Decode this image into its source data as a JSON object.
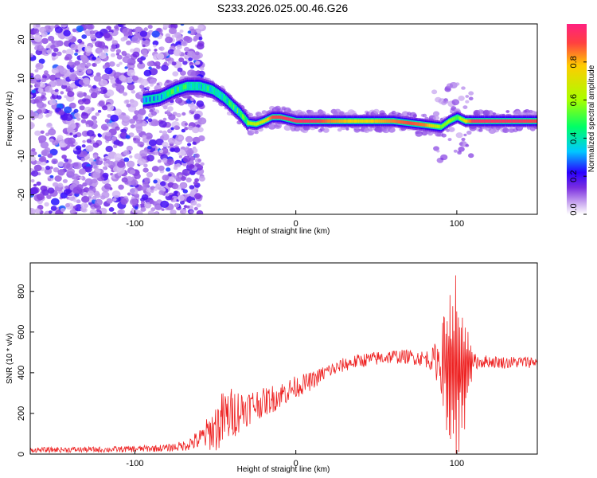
{
  "title": "S233.2026.025.00.46.G26",
  "chart_data": [
    {
      "type": "heatmap",
      "title": "S233.2026.025.00.46.G26",
      "xlabel": "Height of straight line (km)",
      "ylabel": "Frequency (Hz)",
      "xlim": [
        -165,
        150
      ],
      "ylim": [
        -25,
        24
      ],
      "xticks": [
        -100,
        0,
        100
      ],
      "yticks": [
        -20,
        -10,
        0,
        10,
        20
      ],
      "colorbar": {
        "label": "Normalized spectral amplitude",
        "range": [
          0,
          1
        ],
        "ticks": [
          0.0,
          0.2,
          0.4,
          0.6,
          0.8
        ],
        "tick_labels": [
          "0.0",
          "0.2",
          "0.4",
          "0.6",
          "0.8"
        ],
        "colormap": [
          "#ffffff",
          "#c9a8f0",
          "#7a2ee0",
          "#2a00ff",
          "#00c8ff",
          "#00ff66",
          "#a8ff00",
          "#ffcc00",
          "#ff2060"
        ]
      },
      "ridge": {
        "x": [
          -165,
          -140,
          -120,
          -100,
          -85,
          -75,
          -68,
          -60,
          -52,
          -45,
          -40,
          -35,
          -30,
          -25,
          -20,
          -15,
          -10,
          -5,
          0,
          10,
          20,
          30,
          40,
          50,
          60,
          70,
          80,
          90,
          95,
          100,
          105,
          110,
          120,
          130,
          140,
          150
        ],
        "freq": [
          3,
          4,
          5,
          4,
          5,
          7,
          8,
          8,
          7,
          5,
          3,
          1,
          -1.5,
          -1.8,
          -1,
          0,
          0,
          -0.5,
          -1,
          -1,
          -1,
          -1,
          -1,
          -1,
          -1,
          -1.5,
          -2,
          -2.5,
          -1,
          0,
          -1,
          -1,
          -1,
          -1,
          -1,
          -1
        ],
        "amplitude": [
          0.2,
          0.22,
          0.3,
          0.3,
          0.4,
          0.55,
          0.5,
          0.5,
          0.45,
          0.45,
          0.5,
          0.55,
          0.6,
          0.65,
          0.7,
          0.9,
          0.92,
          0.95,
          0.95,
          0.95,
          0.85,
          0.8,
          0.75,
          0.8,
          0.85,
          0.9,
          0.85,
          0.55,
          0.6,
          0.5,
          0.75,
          0.95,
          0.95,
          0.95,
          0.95,
          0.9
        ],
        "noise_region_x": [
          -165,
          -68
        ]
      }
    },
    {
      "type": "line",
      "title": "",
      "xlabel": "Height of straight line (km)",
      "ylabel": "SNR (10 * v/v)",
      "xlim": [
        -165,
        150
      ],
      "ylim": [
        0,
        940
      ],
      "xticks": [
        -100,
        0,
        100
      ],
      "yticks": [
        0,
        200,
        400,
        600,
        800
      ],
      "series": [
        {
          "name": "SNR",
          "color": "#ee2222",
          "x": [
            -165,
            -140,
            -120,
            -100,
            -80,
            -70,
            -60,
            -55,
            -50,
            -45,
            -40,
            -35,
            -30,
            -25,
            -20,
            -15,
            -10,
            -5,
            0,
            5,
            10,
            15,
            20,
            25,
            30,
            40,
            50,
            60,
            70,
            80,
            85,
            90,
            95,
            100,
            105,
            110,
            120,
            130,
            140,
            150
          ],
          "values": [
            20,
            22,
            22,
            25,
            30,
            40,
            70,
            100,
            130,
            170,
            200,
            215,
            230,
            245,
            255,
            270,
            290,
            310,
            330,
            345,
            360,
            385,
            410,
            420,
            440,
            460,
            470,
            480,
            478,
            470,
            465,
            460,
            450,
            420,
            430,
            455,
            455,
            450,
            452,
            455
          ],
          "spread": [
            12,
            14,
            14,
            16,
            18,
            25,
            50,
            80,
            120,
            150,
            130,
            110,
            90,
            80,
            70,
            70,
            65,
            60,
            55,
            50,
            45,
            40,
            38,
            36,
            35,
            35,
            35,
            35,
            35,
            40,
            60,
            150,
            380,
            420,
            300,
            40,
            30,
            30,
            30,
            30
          ]
        }
      ]
    }
  ]
}
